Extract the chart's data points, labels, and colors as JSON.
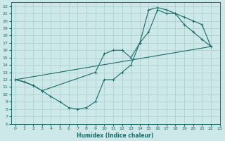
{
  "title": "",
  "xlabel": "Humidex (Indice chaleur)",
  "xlim": [
    -0.5,
    23
  ],
  "ylim": [
    6,
    22.5
  ],
  "xticks": [
    0,
    1,
    2,
    3,
    4,
    5,
    6,
    7,
    8,
    9,
    10,
    11,
    12,
    13,
    14,
    15,
    16,
    17,
    18,
    19,
    20,
    21,
    22,
    23
  ],
  "yticks": [
    6,
    7,
    8,
    9,
    10,
    11,
    12,
    13,
    14,
    15,
    16,
    17,
    18,
    19,
    20,
    21,
    22
  ],
  "bg_color": "#cce8e8",
  "line_color": "#1a6b6b",
  "grid_color": "#b0d0d0",
  "line1_x": [
    0,
    1,
    2,
    3,
    4,
    5,
    6,
    7,
    8,
    9,
    10,
    11,
    12,
    13,
    14,
    15,
    16,
    17,
    18,
    19,
    20,
    21,
    22
  ],
  "line1_y": [
    12,
    11.7,
    11.2,
    10.5,
    9.7,
    9.0,
    8.2,
    8.0,
    8.2,
    9.0,
    12.0,
    12.0,
    13.0,
    14.0,
    17.0,
    21.5,
    21.8,
    21.5,
    21.0,
    19.5,
    18.5,
    17.5,
    16.5
  ],
  "line2_x": [
    0,
    1,
    2,
    3,
    9,
    10,
    11,
    12,
    13,
    14,
    15,
    16,
    17,
    18,
    19,
    20,
    21,
    22
  ],
  "line2_y": [
    12,
    11.7,
    11.2,
    10.5,
    13.0,
    15.5,
    16.0,
    16.0,
    15.0,
    17.0,
    18.5,
    21.5,
    21.0,
    21.0,
    20.5,
    20.0,
    19.5,
    16.5
  ],
  "line3_x": [
    0,
    22
  ],
  "line3_y": [
    12,
    16.5
  ]
}
